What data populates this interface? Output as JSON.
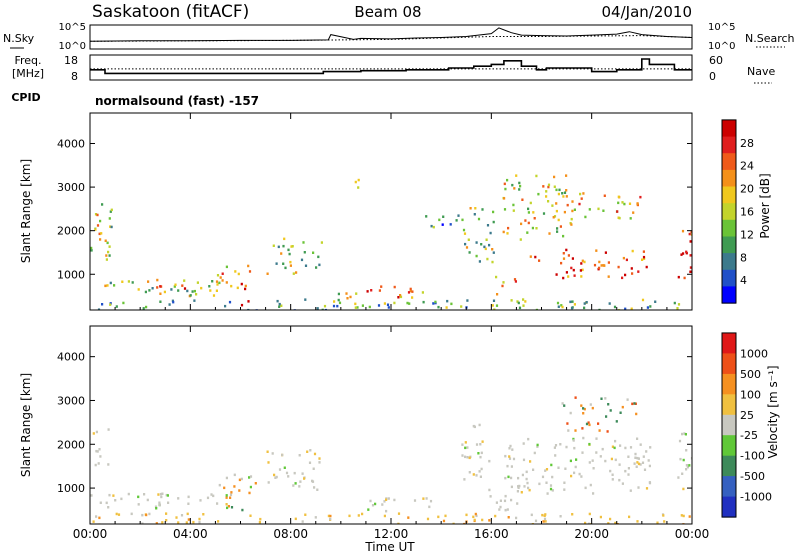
{
  "header": {
    "station": "Saskatoon (fitACF)",
    "beam": "Beam 08",
    "date": "04/Jan/2010"
  },
  "side_labels": {
    "nsky": "N.Sky",
    "nsearch": "N.Search",
    "freq_line1": "Freq.",
    "freq_line2": "[MHz]",
    "nave": "Nave",
    "cpid": "CPID",
    "cpid_value": "normalsound (fast) -157"
  },
  "chart_data": [
    {
      "type": "line",
      "name": "noise-panel",
      "ytick_left": [
        "10^5",
        "10^0"
      ],
      "ytick_right": [
        "10^5",
        "10^0"
      ],
      "ylim_log10": [
        0,
        5
      ],
      "series": [
        {
          "name": "N.Sky",
          "style": "solid",
          "x": [
            0,
            2,
            4,
            6,
            8,
            9.5,
            9.6,
            10.5,
            10.8,
            12,
            13,
            14,
            15,
            16,
            16.3,
            16.8,
            17.2,
            18,
            19,
            20,
            21,
            21.5,
            22,
            23,
            24
          ],
          "y": [
            1.6,
            1.7,
            1.7,
            1.8,
            1.8,
            1.9,
            3.0,
            2.0,
            2.2,
            2.1,
            2.3,
            2.4,
            2.6,
            3.2,
            4.4,
            3.4,
            2.9,
            2.8,
            2.7,
            2.9,
            3.1,
            3.6,
            3.0,
            2.6,
            2.4
          ]
        },
        {
          "name": "N.Search",
          "style": "dotted",
          "x": [
            0,
            4,
            8,
            12,
            16,
            18,
            20,
            22,
            24
          ],
          "y": [
            1.6,
            1.7,
            1.8,
            2.0,
            2.6,
            2.6,
            2.7,
            2.8,
            2.4
          ]
        }
      ]
    },
    {
      "type": "line",
      "name": "frequency-nave-panel",
      "ytick_left": [
        "18",
        "8"
      ],
      "ytick_right": [
        "60",
        "0"
      ],
      "ylim_freq": [
        8,
        18
      ],
      "ylim_nave": [
        0,
        60
      ],
      "series": [
        {
          "name": "Freq.",
          "style": "solid",
          "x": [
            0,
            0.6,
            0.6,
            9.3,
            9.3,
            10.8,
            10.8,
            12.6,
            12.6,
            14.3,
            14.3,
            15.3,
            15.3,
            16.0,
            16.0,
            16.5,
            16.5,
            17.2,
            17.2,
            17.8,
            17.8,
            18.2,
            18.2,
            20,
            20,
            21,
            21,
            22.0,
            22.0,
            22.3,
            22.3,
            23.3,
            23.3,
            24
          ],
          "y": [
            12,
            12,
            10,
            10,
            11,
            11,
            11.5,
            11.5,
            12,
            12,
            13,
            13,
            14,
            14,
            15,
            15,
            17,
            17,
            14,
            14,
            12,
            12,
            13,
            13,
            11,
            11,
            12,
            12,
            18,
            18,
            15,
            15,
            12,
            12
          ]
        },
        {
          "name": "Nave",
          "style": "dotted",
          "x": [
            0,
            24
          ],
          "y": [
            27,
            27
          ]
        }
      ]
    },
    {
      "type": "heatmap",
      "name": "power-panel",
      "ylabel": "Slant Range [km]",
      "yticks": [
        1000,
        2000,
        3000,
        4000
      ],
      "ylim": [
        180,
        4700
      ],
      "xlim": [
        0,
        24
      ],
      "colorbar_label": "Power [dB]",
      "colorbar_ticks": [
        "28",
        "24",
        "20",
        "16",
        "12",
        "8",
        "4"
      ],
      "colorbar_colors": [
        "#0000ff",
        "#2050c8",
        "#3c7a8c",
        "#3f9b52",
        "#6ac337",
        "#c3d42c",
        "#f0c81e",
        "#f4901a",
        "#ef5a1a",
        "#e01e1e",
        "#cc0000"
      ],
      "regions": [
        {
          "t0": 0.0,
          "t1": 0.9,
          "r0": 1200,
          "r1": 2700,
          "level": 0.5
        },
        {
          "t0": 0.0,
          "t1": 24,
          "r0": 180,
          "r1": 450,
          "level": 0.35
        },
        {
          "t0": 0.0,
          "t1": 5.3,
          "r0": 520,
          "r1": 900,
          "level": 0.45
        },
        {
          "t0": 2.2,
          "t1": 4.2,
          "r0": 560,
          "r1": 820,
          "level": 0.8
        },
        {
          "t0": 5.0,
          "t1": 6.5,
          "r0": 650,
          "r1": 1300,
          "level": 0.6
        },
        {
          "t0": 5.6,
          "t1": 6.4,
          "r0": 300,
          "r1": 900,
          "level": 0.95
        },
        {
          "t0": 7.0,
          "t1": 9.3,
          "r0": 1000,
          "r1": 1900,
          "level": 0.45
        },
        {
          "t0": 9.6,
          "t1": 10.6,
          "r0": 180,
          "r1": 600,
          "level": 0.5
        },
        {
          "t0": 10.5,
          "t1": 11.3,
          "r0": 2900,
          "r1": 3200,
          "level": 0.4
        },
        {
          "t0": 11.0,
          "t1": 13.7,
          "r0": 480,
          "r1": 760,
          "level": 0.75
        },
        {
          "t0": 13.0,
          "t1": 15.0,
          "r0": 2100,
          "r1": 2400,
          "level": 0.3
        },
        {
          "t0": 14.8,
          "t1": 16.1,
          "r0": 1200,
          "r1": 2600,
          "level": 0.45
        },
        {
          "t0": 15.8,
          "t1": 17.0,
          "r0": 550,
          "r1": 1000,
          "level": 0.7
        },
        {
          "t0": 16.4,
          "t1": 19.2,
          "r0": 1800,
          "r1": 3300,
          "level": 0.55
        },
        {
          "t0": 17.5,
          "t1": 22.2,
          "r0": 900,
          "r1": 1600,
          "level": 0.8
        },
        {
          "t0": 19.0,
          "t1": 20.5,
          "r0": 1100,
          "r1": 1500,
          "level": 0.95
        },
        {
          "t0": 18.5,
          "t1": 22.0,
          "r0": 2300,
          "r1": 2900,
          "level": 0.6
        },
        {
          "t0": 23.4,
          "t1": 24.0,
          "r0": 800,
          "r1": 2200,
          "level": 0.85
        }
      ]
    },
    {
      "type": "heatmap",
      "name": "velocity-panel",
      "ylabel": "Slant Range [km]",
      "xlabel": "Time UT",
      "yticks": [
        1000,
        2000,
        3000,
        4000
      ],
      "ylim": [
        180,
        4700
      ],
      "xlim": [
        0,
        24
      ],
      "xtick_labels": [
        "00:00",
        "04:00",
        "08:00",
        "12:00",
        "16:00",
        "20:00",
        "00:00"
      ],
      "xtick_values": [
        0,
        4,
        8,
        12,
        16,
        20,
        24
      ],
      "colorbar_label": "Velocity [m s⁻¹]",
      "colorbar_ticks": [
        "1000",
        "500",
        "100",
        "25",
        "-25",
        "-100",
        "-500",
        "-1000"
      ],
      "colorbar_colors": [
        "#2030c0",
        "#3560c0",
        "#3d8a5a",
        "#60c838",
        "#c8c8c0",
        "#f0c040",
        "#f59020",
        "#ee5018",
        "#e01818"
      ],
      "regions": [
        {
          "t0": 0.0,
          "t1": 0.7,
          "r0": 1300,
          "r1": 2500,
          "kind": "grey"
        },
        {
          "t0": 0.0,
          "t1": 24,
          "r0": 180,
          "r1": 450,
          "kind": "yellow"
        },
        {
          "t0": 0.0,
          "t1": 5.5,
          "r0": 560,
          "r1": 900,
          "kind": "grey"
        },
        {
          "t0": 5.0,
          "t1": 6.6,
          "r0": 500,
          "r1": 1350,
          "kind": "orange"
        },
        {
          "t0": 7.0,
          "t1": 9.2,
          "r0": 900,
          "r1": 1900,
          "kind": "grey"
        },
        {
          "t0": 11.0,
          "t1": 14.0,
          "r0": 500,
          "r1": 800,
          "kind": "grey"
        },
        {
          "t0": 14.8,
          "t1": 16.0,
          "r0": 1200,
          "r1": 2500,
          "kind": "grey"
        },
        {
          "t0": 15.8,
          "t1": 17.2,
          "r0": 500,
          "r1": 1000,
          "kind": "grey"
        },
        {
          "t0": 16.5,
          "t1": 22.3,
          "r0": 900,
          "r1": 2200,
          "kind": "grey"
        },
        {
          "t0": 18.6,
          "t1": 21.8,
          "r0": 2300,
          "r1": 3100,
          "kind": "mixed"
        },
        {
          "t0": 23.4,
          "t1": 24.0,
          "r0": 800,
          "r1": 2300,
          "kind": "grey"
        }
      ]
    }
  ]
}
